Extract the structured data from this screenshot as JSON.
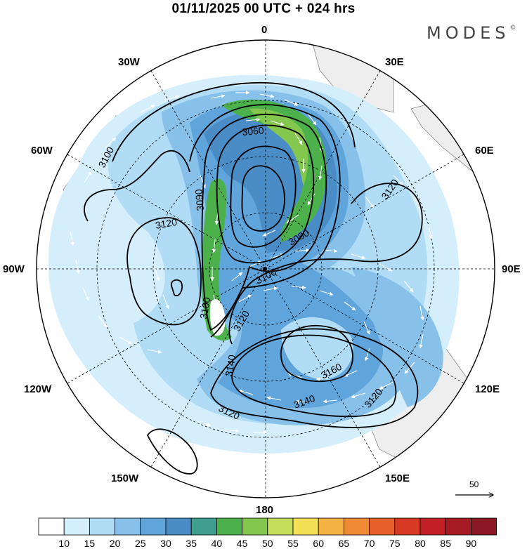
{
  "title": "01/11/2025  00 UTC  + 024 hrs",
  "brand": "MODES",
  "brand_mark": "©",
  "longitude_labels": {
    "n": "0",
    "ne": "30E",
    "e_upper": "60E",
    "e": "90E",
    "e_lower": "120E",
    "se": "150E",
    "s": "180",
    "sw": "150W",
    "w_lower": "120W",
    "w": "90W",
    "w_upper": "60W",
    "nw": "30W"
  },
  "contours": {
    "c3060": "3060",
    "c3080": "3080",
    "c3090": "3090",
    "c3100a": "3100",
    "c3100b": "3100",
    "c3100c": "3100",
    "c3120a": "3120",
    "c3120b": "3120",
    "c3120c": "3120",
    "c3120d": "3120",
    "c3120e": "3120",
    "c3140a": "3140",
    "c3140b": "3140",
    "c3160": "3160"
  },
  "wind_reference": {
    "label": "50"
  },
  "colorbar": {
    "ticks": [
      "10",
      "15",
      "20",
      "25",
      "30",
      "35",
      "40",
      "45",
      "50",
      "55",
      "60",
      "65",
      "70",
      "75",
      "80",
      "85",
      "90"
    ],
    "colors": [
      "#ffffff",
      "#d4eefc",
      "#b1dcf6",
      "#87c1ea",
      "#5fa4db",
      "#4a8cc6",
      "#3f9e8e",
      "#4cb14a",
      "#83c74f",
      "#c6dd5a",
      "#f3df55",
      "#f4b144",
      "#ef8a35",
      "#e5602b",
      "#d63a25",
      "#c12126",
      "#a61a23",
      "#8a1722"
    ]
  },
  "colors": {
    "land": "#eeeeee",
    "coast": "#8a8a8a",
    "grid": "#000000",
    "contour": "#000000",
    "arrow": "#ffffff"
  }
}
